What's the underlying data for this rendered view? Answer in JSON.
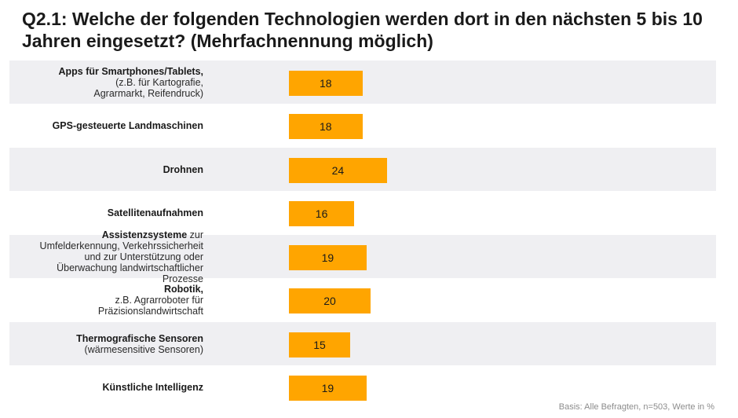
{
  "chart_data": {
    "type": "bar",
    "orientation": "horizontal",
    "title": "Q2.1: Welche der folgenden Technologien werden dort in den nächsten 5 bis 10 Jahren eingesetzt? (Mehrfachnennung möglich)",
    "categories": [
      {
        "main": "Apps für Smartphones/Tablets,",
        "sub": [
          "(z.B. für Kartografie,",
          "Agrarmarkt, Reifendruck)"
        ]
      },
      {
        "main": "GPS-gesteuerte Landmaschinen",
        "sub": []
      },
      {
        "main": "Drohnen",
        "sub": []
      },
      {
        "main": "Satellitenaufnahmen",
        "sub": []
      },
      {
        "main": "Assistenzsysteme",
        "main_suffix": " zur",
        "sub": [
          "Umfelderkennung, Verkehrssicherheit",
          "und zur Unterstützung oder",
          "Überwachung landwirtschaftlicher",
          "Prozesse"
        ]
      },
      {
        "main": "Robotik,",
        "sub": [
          "z.B. Agrarroboter für",
          "Präzisionslandwirtschaft"
        ]
      },
      {
        "main": "Thermografische Sensoren",
        "sub": [
          "(wärmesensitive Sensoren)"
        ]
      },
      {
        "main": "Künstliche Intelligenz",
        "sub": []
      }
    ],
    "values": [
      18,
      18,
      24,
      16,
      19,
      20,
      15,
      19
    ],
    "xlim": [
      0,
      100
    ],
    "bar_color": "#ffa500",
    "row_bg_color": "#efeff2",
    "source": "Basis: Alle Befragten, n=503, Werte in %"
  }
}
